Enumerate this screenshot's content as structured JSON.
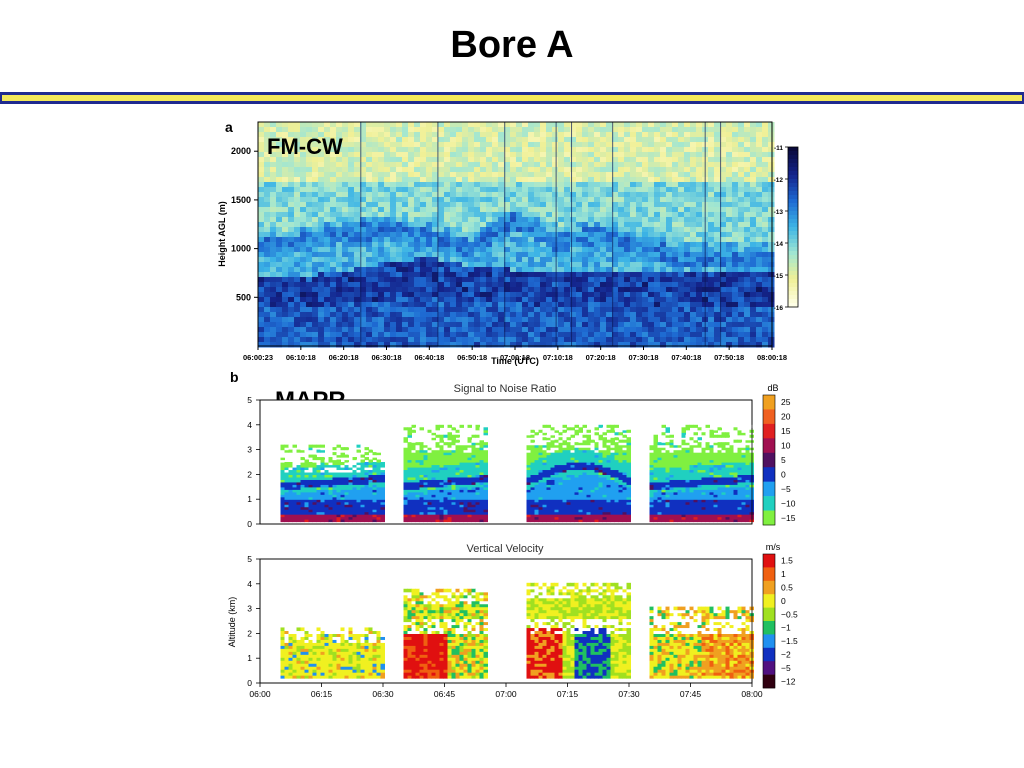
{
  "slide": {
    "title": "Bore A"
  },
  "colors": {
    "rule_blue": "#1f2a8f",
    "rule_yellow": "#f2e85a"
  },
  "chart_data": [
    {
      "panel": "a",
      "type": "heatmap",
      "label": "FM-CW",
      "xlabel": "Time (UTC)",
      "ylabel": "Height AGL (m)",
      "x_ticks": [
        "06:00:23",
        "06:10:18",
        "06:20:18",
        "06:30:18",
        "06:40:18",
        "06:50:18",
        "07:00:18",
        "07:10:18",
        "07:20:18",
        "07:30:18",
        "07:40:18",
        "07:50:18",
        "08:00:18"
      ],
      "y_ticks": [
        500,
        1000,
        1500,
        2000
      ],
      "ylim": [
        0,
        2300
      ],
      "colorbar": {
        "ticks": [
          "-11",
          "-12",
          "-13",
          "-14",
          "-15",
          "-16"
        ],
        "colors": [
          "#0a0a3a",
          "#14248c",
          "#1e6ad2",
          "#3cb4e6",
          "#a0e6d2",
          "#f0f096",
          "#ffffe6"
        ]
      },
      "features": {
        "low_layer_top_m": [
          700,
          720,
          760,
          860,
          900,
          820,
          780,
          760,
          780,
          760,
          740,
          740,
          740
        ],
        "wave_crest_m": [
          1000,
          1050,
          1150,
          1200,
          1100,
          1000,
          1300,
          1050,
          1150,
          1000,
          900,
          900,
          900
        ]
      }
    },
    {
      "panel": "b",
      "label": "MAPR",
      "type": "heatmap",
      "title": "Signal to Noise Ratio",
      "unit": "dB",
      "y_ticks": [
        0,
        1,
        2,
        3,
        4,
        5
      ],
      "ylim": [
        0,
        5
      ],
      "legend_labels": [
        "25",
        "20",
        "15",
        "10",
        "5",
        "0",
        "−5",
        "−10",
        "−15"
      ],
      "legend_colors": [
        "#f0a020",
        "#f06020",
        "#e02020",
        "#a01050",
        "#501060",
        "#1030c0",
        "#20a0f0",
        "#20d0c0",
        "#80f040"
      ],
      "data_windows_hh_mm": [
        [
          "06:05",
          "06:30"
        ],
        [
          "06:35",
          "06:55"
        ],
        [
          "07:05",
          "07:30"
        ],
        [
          "07:35",
          "08:00"
        ]
      ]
    },
    {
      "panel": "b",
      "type": "heatmap",
      "title": "Vertical Velocity",
      "unit": "m/s",
      "ylabel": "Altitude (km)",
      "x_ticks": [
        "06:00",
        "06:15",
        "06:30",
        "06:45",
        "07:00",
        "07:15",
        "07:30",
        "07:45",
        "08:00"
      ],
      "y_ticks": [
        0,
        1,
        2,
        3,
        4,
        5
      ],
      "ylim": [
        0,
        5
      ],
      "legend_labels": [
        "1.5",
        "1",
        "0.5",
        "0",
        "−0.5",
        "−1",
        "−1.5",
        "−2",
        "−5",
        "−12"
      ],
      "legend_colors": [
        "#e01010",
        "#f06010",
        "#f0a020",
        "#f0f020",
        "#a0e020",
        "#20c060",
        "#2090f0",
        "#1030c0",
        "#501080",
        "#300010"
      ]
    }
  ]
}
